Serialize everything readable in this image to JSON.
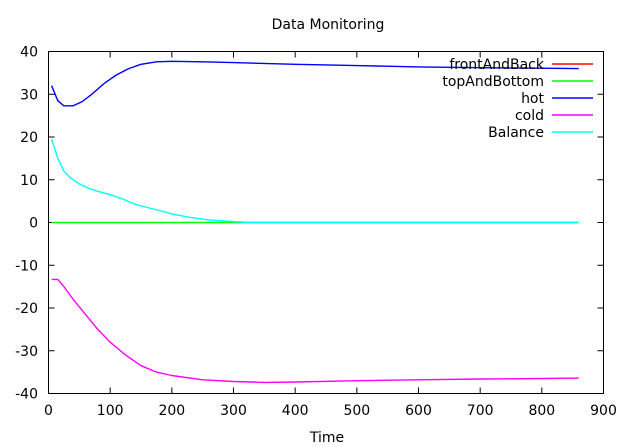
{
  "chart_data": {
    "type": "line",
    "title": "Data Monitoring",
    "xlabel": "Time",
    "ylabel": "",
    "xlim": [
      0,
      900
    ],
    "ylim": [
      -40,
      40
    ],
    "x_ticks": [
      0,
      100,
      200,
      300,
      400,
      500,
      600,
      700,
      800,
      900
    ],
    "y_ticks": [
      -40,
      -30,
      -20,
      -10,
      0,
      10,
      20,
      30,
      40
    ],
    "x_tick_labels": [
      "0",
      "100",
      "200",
      "300",
      "400",
      "500",
      "600",
      "700",
      "800",
      "900"
    ],
    "y_tick_labels": [
      "-40",
      "-30",
      "-20",
      "-10",
      "0",
      "10",
      "20",
      "30",
      "40"
    ],
    "grid": false,
    "legend_position": "top-right",
    "series": [
      {
        "name": "frontAndBack",
        "color": "#ff0000",
        "x": [],
        "y": []
      },
      {
        "name": "topAndBottom",
        "color": "#00ff00",
        "x": [
          5,
          100,
          200,
          300,
          400,
          500,
          600,
          700,
          800,
          860
        ],
        "y": [
          0,
          0,
          0,
          0,
          0,
          0,
          0,
          0,
          0,
          0
        ]
      },
      {
        "name": "hot",
        "color": "#0000ff",
        "x": [
          5,
          15,
          25,
          40,
          55,
          70,
          90,
          110,
          130,
          150,
          175,
          200,
          250,
          300,
          400,
          500,
          600,
          700,
          800,
          860
        ],
        "y": [
          32,
          28.5,
          27.3,
          27.3,
          28.3,
          30,
          32.5,
          34.5,
          36,
          37,
          37.6,
          37.7,
          37.6,
          37.4,
          37,
          36.7,
          36.4,
          36.2,
          36.1,
          36
        ],
        "visible": true
      },
      {
        "name": "cold",
        "color": "#ff00ff",
        "x": [
          5,
          15,
          25,
          40,
          60,
          80,
          100,
          125,
          150,
          175,
          200,
          250,
          300,
          350,
          400,
          500,
          600,
          700,
          800,
          860
        ],
        "y": [
          -13.3,
          -13.3,
          -15,
          -18,
          -21.5,
          -25,
          -28,
          -31,
          -33.5,
          -35,
          -35.8,
          -36.8,
          -37.2,
          -37.4,
          -37.3,
          -37,
          -36.8,
          -36.6,
          -36.5,
          -36.4
        ]
      },
      {
        "name": "Balance",
        "color": "#00ffff",
        "x": [
          5,
          15,
          25,
          35,
          50,
          65,
          80,
          100,
          120,
          140,
          160,
          180,
          200,
          230,
          260,
          300,
          330,
          400,
          500,
          600,
          700,
          800,
          860
        ],
        "y": [
          19.5,
          15,
          12,
          10.5,
          9,
          8,
          7.3,
          6.5,
          5.5,
          4.3,
          3.5,
          2.8,
          2,
          1.2,
          0.6,
          0.2,
          0,
          0,
          0,
          0,
          0,
          0,
          0
        ]
      }
    ]
  }
}
